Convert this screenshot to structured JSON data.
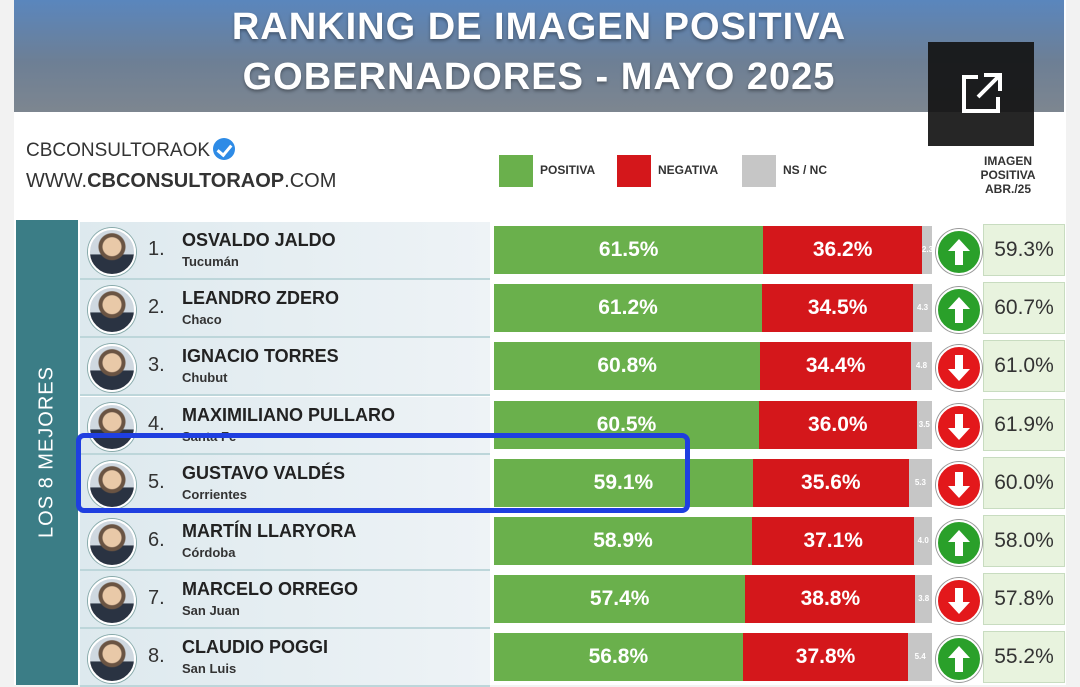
{
  "title_line1": "RANKING DE IMAGEN POSITIVA",
  "title_line2": "GOBERNADORES - MAYO 2025",
  "brand_name": "CBCONSULTORAOK",
  "brand_url_prefix": "WWW.",
  "brand_url_bold": "CBCONSULTORAOP",
  "brand_url_suffix": ".COM",
  "legend": {
    "positiva": "POSITIVA",
    "negativa": "NEGATIVA",
    "nsnc": "NS / NC"
  },
  "previous_header": [
    "IMAGEN",
    "POSITIVA",
    "ABR./25"
  ],
  "side_label": "LOS 8 MEJORES",
  "colors": {
    "positiva": "#6ab04c",
    "negativa": "#d4171b",
    "nsnc": "#c6c6c6",
    "up": "#2aa02a",
    "down": "#e3181b",
    "highlight": "#1f3fe0"
  },
  "icons": {
    "external": "external-link-icon",
    "up": "arrow-up-icon",
    "down": "arrow-down-icon",
    "verified": "verified-badge-icon"
  },
  "chart_data": {
    "type": "bar",
    "stacked": true,
    "title": "RANKING DE IMAGEN POSITIVA GOBERNADORES - MAYO 2025",
    "series_names": [
      "POSITIVA",
      "NEGATIVA",
      "NS / NC"
    ],
    "highlighted_rank": 5,
    "rows": [
      {
        "rank": "1.",
        "name": "OSVALDO JALDO",
        "province": "Tucumán",
        "positiva": 61.5,
        "positiva_label": "61.5%",
        "negativa": 36.2,
        "negativa_label": "36.2%",
        "nsnc": 2.3,
        "nsnc_label": "2.3",
        "trend": "up",
        "previous_label": "59.3%"
      },
      {
        "rank": "2.",
        "name": "LEANDRO ZDERO",
        "province": "Chaco",
        "positiva": 61.2,
        "positiva_label": "61.2%",
        "negativa": 34.5,
        "negativa_label": "34.5%",
        "nsnc": 4.3,
        "nsnc_label": "4.3",
        "trend": "up",
        "previous_label": "60.7%"
      },
      {
        "rank": "3.",
        "name": "IGNACIO TORRES",
        "province": "Chubut",
        "positiva": 60.8,
        "positiva_label": "60.8%",
        "negativa": 34.4,
        "negativa_label": "34.4%",
        "nsnc": 4.8,
        "nsnc_label": "4.8",
        "trend": "down",
        "previous_label": "61.0%"
      },
      {
        "rank": "4.",
        "name": "MAXIMILIANO PULLARO",
        "province": "Santa Fe",
        "positiva": 60.5,
        "positiva_label": "60.5%",
        "negativa": 36.0,
        "negativa_label": "36.0%",
        "nsnc": 3.5,
        "nsnc_label": "3.5",
        "trend": "down",
        "previous_label": "61.9%"
      },
      {
        "rank": "5.",
        "name": "GUSTAVO VALDÉS",
        "province": "Corrientes",
        "positiva": 59.1,
        "positiva_label": "59.1%",
        "negativa": 35.6,
        "negativa_label": "35.6%",
        "nsnc": 5.3,
        "nsnc_label": "5.3",
        "trend": "down",
        "previous_label": "60.0%"
      },
      {
        "rank": "6.",
        "name": "MARTÍN LLARYORA",
        "province": "Córdoba",
        "positiva": 58.9,
        "positiva_label": "58.9%",
        "negativa": 37.1,
        "negativa_label": "37.1%",
        "nsnc": 4.0,
        "nsnc_label": "4.0",
        "trend": "up",
        "previous_label": "58.0%"
      },
      {
        "rank": "7.",
        "name": "MARCELO ORREGO",
        "province": "San Juan",
        "positiva": 57.4,
        "positiva_label": "57.4%",
        "negativa": 38.8,
        "negativa_label": "38.8%",
        "nsnc": 3.8,
        "nsnc_label": "3.8",
        "trend": "down",
        "previous_label": "57.8%"
      },
      {
        "rank": "8.",
        "name": "CLAUDIO POGGI",
        "province": "San Luis",
        "positiva": 56.8,
        "positiva_label": "56.8%",
        "negativa": 37.8,
        "negativa_label": "37.8%",
        "nsnc": 5.4,
        "nsnc_label": "5.4",
        "trend": "up",
        "previous_label": "55.2%"
      }
    ]
  }
}
